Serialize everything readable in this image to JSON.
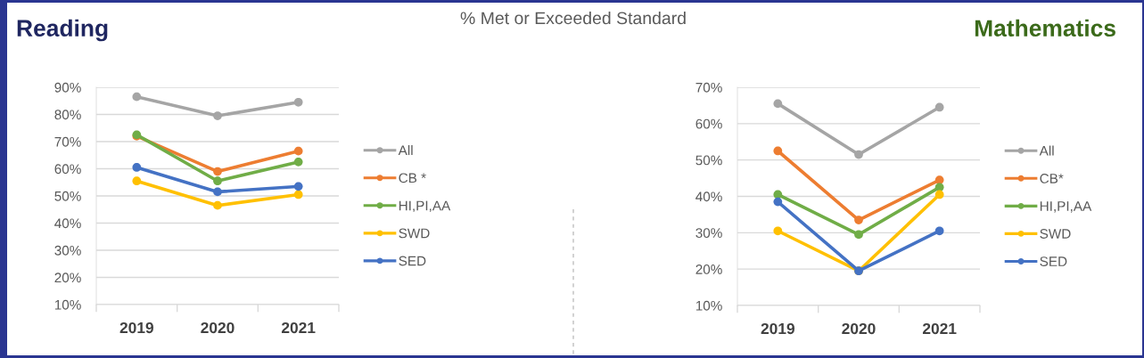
{
  "chart_data": [
    {
      "type": "line",
      "title": "Reading",
      "annotations": [
        "% Met or Exceeded Standard"
      ],
      "categories": [
        "2019",
        "2020",
        "2021"
      ],
      "series": [
        {
          "name": "All",
          "color": "#a5a5a5",
          "values": [
            86.5,
            79.5,
            84.5
          ]
        },
        {
          "name": "CB *",
          "color": "#ed7d31",
          "values": [
            72,
            59,
            66.5
          ]
        },
        {
          "name": "HI,PI,AA",
          "color": "#70ad47",
          "values": [
            72.5,
            55.5,
            62.5
          ]
        },
        {
          "name": "SWD",
          "color": "#ffc000",
          "values": [
            55.5,
            46.5,
            50.5
          ]
        },
        {
          "name": "SED",
          "color": "#4472c4",
          "values": [
            60.5,
            51.5,
            53.5
          ]
        }
      ],
      "ylim": [
        10,
        90
      ],
      "yticks": [
        {
          "value": 10,
          "label": "10%"
        },
        {
          "value": 20,
          "label": "20%"
        },
        {
          "value": 30,
          "label": "30%"
        },
        {
          "value": 40,
          "label": "40%"
        },
        {
          "value": 50,
          "label": "50%"
        },
        {
          "value": 60,
          "label": "60%"
        },
        {
          "value": 70,
          "label": "70%"
        },
        {
          "value": 80,
          "label": "80%"
        },
        {
          "value": 90,
          "label": "90%"
        }
      ],
      "grid": "y",
      "legend": "right",
      "marker": "circle",
      "line_style": "solid"
    },
    {
      "type": "line",
      "title": "Mathematics",
      "categories": [
        "2019",
        "2020",
        "2021"
      ],
      "series": [
        {
          "name": "All",
          "color": "#a5a5a5",
          "values": [
            65.5,
            51.5,
            64.5
          ]
        },
        {
          "name": "CB*",
          "color": "#ed7d31",
          "values": [
            52.5,
            33.5,
            44.5
          ]
        },
        {
          "name": "HI,PI,AA",
          "color": "#70ad47",
          "values": [
            40.5,
            29.5,
            42.5
          ]
        },
        {
          "name": "SWD",
          "color": "#ffc000",
          "values": [
            30.5,
            19.5,
            40.5
          ]
        },
        {
          "name": "SED",
          "color": "#4472c4",
          "values": [
            38.5,
            19.5,
            30.5
          ]
        }
      ],
      "ylim": [
        10,
        70
      ],
      "yticks": [
        {
          "value": 10,
          "label": "10%"
        },
        {
          "value": 20,
          "label": "20%"
        },
        {
          "value": 30,
          "label": "30%"
        },
        {
          "value": 40,
          "label": "40%"
        },
        {
          "value": 50,
          "label": "50%"
        },
        {
          "value": 60,
          "label": "60%"
        },
        {
          "value": 70,
          "label": "70%"
        }
      ],
      "grid": "y",
      "legend": "right",
      "marker": "circle",
      "line_style": "solid"
    }
  ]
}
